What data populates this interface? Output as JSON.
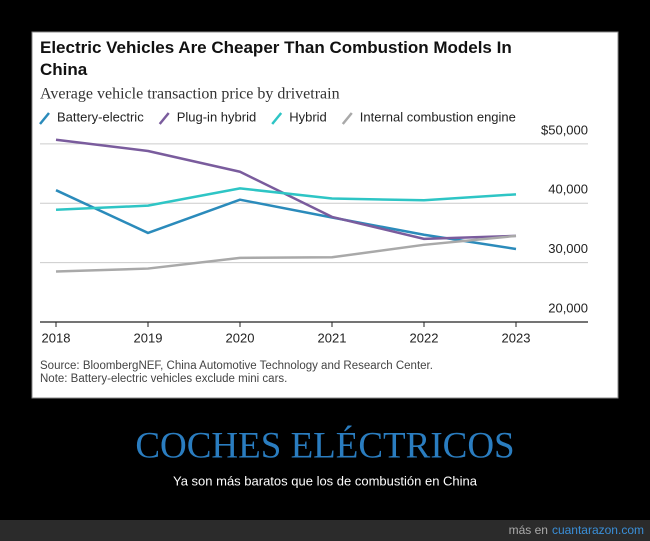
{
  "chart_data": {
    "type": "line",
    "title": "Electric Vehicles Are Cheaper Than Combustion Models In China",
    "subtitle": "Average vehicle transaction price by drivetrain",
    "categories": [
      "2018",
      "2019",
      "2020",
      "2021",
      "2022",
      "2023"
    ],
    "series": [
      {
        "name": "Battery-electric",
        "color": "#2b8bbb",
        "values": [
          42200,
          35000,
          40600,
          37600,
          34700,
          32300
        ]
      },
      {
        "name": "Plug-in hybrid",
        "color": "#7a5c9d",
        "values": [
          50700,
          48800,
          45300,
          37700,
          34000,
          34500
        ]
      },
      {
        "name": "Hybrid",
        "color": "#2ec5c5",
        "values": [
          38900,
          39600,
          42500,
          40800,
          40500,
          41500
        ]
      },
      {
        "name": "Internal combustion engine",
        "color": "#a9a9a9",
        "values": [
          28500,
          29000,
          30800,
          30900,
          33000,
          34500
        ]
      }
    ],
    "ylim": [
      20000,
      52000
    ],
    "yticks": [
      {
        "value": 20000,
        "label": "20,000"
      },
      {
        "value": 30000,
        "label": "30,000"
      },
      {
        "value": 40000,
        "label": "40,000"
      },
      {
        "value": 50000,
        "label": "$50,000"
      }
    ],
    "grid": true,
    "source": "Source: BloombergNEF, China Automotive Technology and Research Center.",
    "note": "Note: Battery-electric vehicles exclude mini cars."
  },
  "caption": {
    "headline": "COCHES ELÉCTRICOS",
    "text": "Ya son más baratos que los de combustión en China"
  },
  "footer": {
    "prefix": "más en",
    "link": "cuantarazon.com"
  }
}
